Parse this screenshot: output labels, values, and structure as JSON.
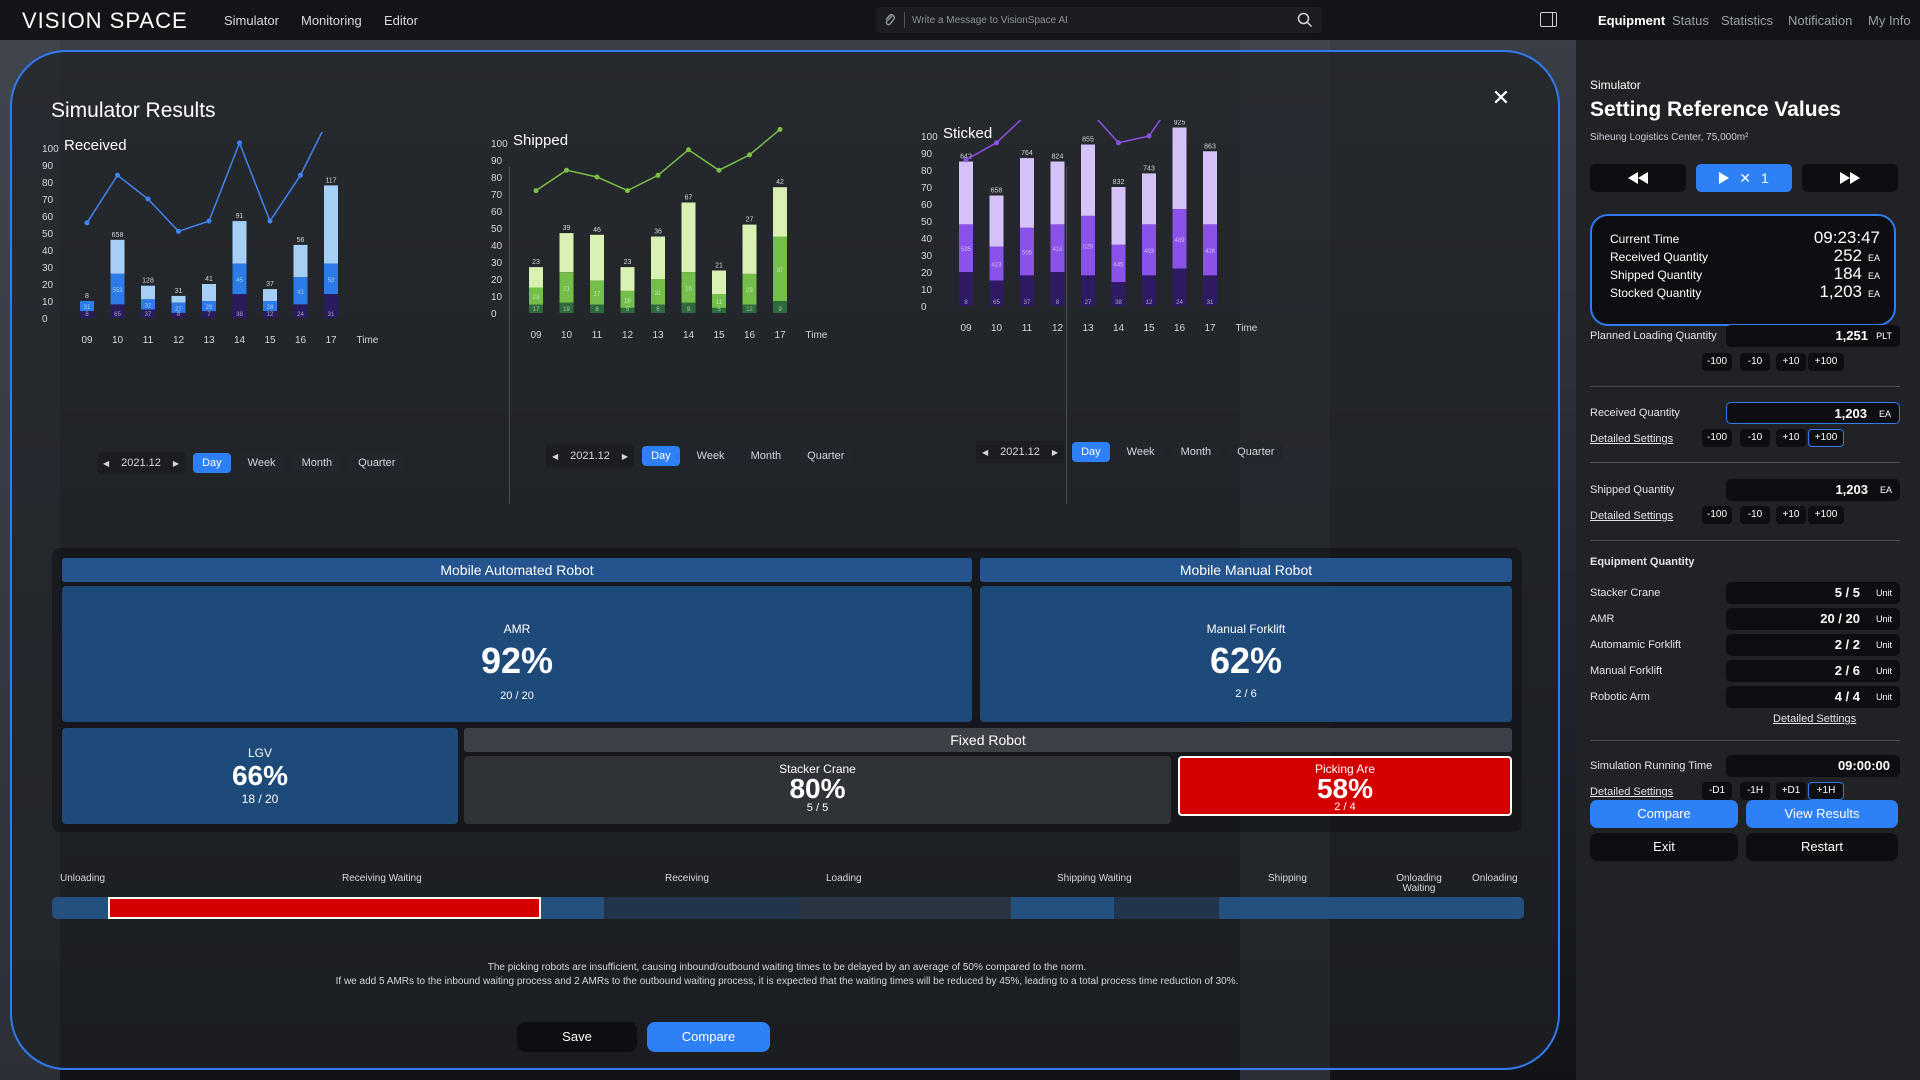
{
  "header": {
    "logo": "VISION SPACE",
    "nav": [
      "Simulator",
      "Monitoring",
      "Editor"
    ],
    "ai_placeholder": "Write a Message to VisionSpace AI",
    "right_tabs": [
      "Equipment",
      "Status",
      "Statistics",
      "Notification",
      "My Info"
    ]
  },
  "modal": {
    "title": "Simulator Results"
  },
  "chart_data": [
    {
      "type": "bar",
      "title": "Received",
      "xlabel": "Time",
      "categories": [
        "09",
        "10",
        "11",
        "12",
        "13",
        "14",
        "15",
        "16",
        "17"
      ],
      "yticks": [
        0,
        10,
        20,
        30,
        40,
        50,
        60,
        70,
        80,
        90,
        100
      ],
      "bar_labels": [
        8,
        658,
        128,
        31,
        41,
        91,
        37,
        56,
        117
      ],
      "inner_labels": [
        31,
        553,
        32,
        27,
        29,
        45,
        28,
        41,
        53
      ],
      "low_labels": [
        8,
        65,
        37,
        8,
        7,
        38,
        12,
        24,
        31
      ],
      "bar_total": [
        10,
        46,
        19,
        13,
        20,
        57,
        17,
        43,
        78
      ],
      "segments": {
        "bottom": [
          4,
          8,
          5,
          3,
          4,
          14,
          4,
          8,
          14
        ],
        "middle": [
          6,
          18,
          6,
          6,
          6,
          18,
          6,
          16,
          18
        ]
      },
      "line": [
        56,
        84,
        70,
        51,
        57,
        103,
        57,
        84,
        120
      ],
      "colors": {
        "bar_top": "#a5cff5",
        "bar_mid": "#2d7be9",
        "bar_bottom": "#2a1a5e",
        "line": "#3f86f2"
      },
      "controls": {
        "date": "2021.12",
        "periods": [
          "Day",
          "Week",
          "Month",
          "Quarter"
        ],
        "active": "Day"
      }
    },
    {
      "type": "bar",
      "title": "Shipped",
      "xlabel": "Time",
      "categories": [
        "09",
        "10",
        "11",
        "12",
        "13",
        "14",
        "15",
        "16",
        "17"
      ],
      "yticks": [
        0,
        10,
        20,
        30,
        40,
        50,
        60,
        70,
        80,
        90,
        100
      ],
      "bar_labels": [
        23,
        39,
        46,
        23,
        36,
        67,
        21,
        27,
        42
      ],
      "inner_labels": [
        23,
        21,
        17,
        18,
        31,
        16,
        11,
        23,
        37
      ],
      "low_labels": [
        17,
        19,
        8,
        5,
        6,
        9,
        5,
        12,
        9
      ],
      "bar_total": [
        27,
        47,
        46,
        27,
        45,
        65,
        25,
        52,
        74
      ],
      "segments": {
        "bottom": [
          5,
          6,
          5,
          3,
          5,
          6,
          3,
          5,
          7
        ],
        "middle": [
          10,
          18,
          14,
          10,
          15,
          18,
          8,
          18,
          38
        ]
      },
      "line": [
        72,
        84,
        80,
        72,
        81,
        96,
        84,
        93,
        108
      ],
      "colors": {
        "bar_top": "#d9f1b3",
        "bar_mid": "#74bf4a",
        "bar_bottom": "#2e6a3c",
        "line": "#7bbf45"
      },
      "controls": {
        "date": "2021.12",
        "periods": [
          "Day",
          "Week",
          "Month",
          "Quarter"
        ],
        "active": "Day"
      }
    },
    {
      "type": "bar",
      "title": "Sticked",
      "xlabel": "Time",
      "categories": [
        "09",
        "10",
        "11",
        "12",
        "13",
        "14",
        "15",
        "16",
        "17"
      ],
      "yticks": [
        0,
        10,
        20,
        30,
        40,
        50,
        60,
        70,
        80,
        90,
        100
      ],
      "bar_labels": [
        642,
        658,
        764,
        824,
        855,
        832,
        743,
        925,
        863
      ],
      "inner_labels": [
        535,
        423,
        505,
        418,
        529,
        445,
        493,
        489,
        426
      ],
      "low_labels": [
        8,
        65,
        37,
        8,
        27,
        38,
        12,
        24,
        31
      ],
      "bar_total": [
        85,
        65,
        87,
        85,
        95,
        70,
        78,
        105,
        91
      ],
      "segments": {
        "bottom": [
          20,
          15,
          18,
          20,
          18,
          14,
          18,
          22,
          18
        ],
        "middle": [
          28,
          20,
          28,
          28,
          35,
          22,
          30,
          35,
          30
        ]
      },
      "line": [
        86,
        96,
        113,
        112,
        116,
        96,
        100,
        126,
        114
      ],
      "colors": {
        "bar_top": "#d4c2f8",
        "bar_mid": "#8a52e8",
        "bar_bottom": "#2e1a62",
        "line": "#8a52e8"
      },
      "controls": {
        "date": "2021.12",
        "periods": [
          "Day",
          "Week",
          "Month",
          "Quarter"
        ],
        "active": "Day"
      }
    }
  ],
  "robots": {
    "mar_header": "Mobile Automated Robot",
    "mmr_header": "Mobile Manual Robot",
    "fixed_header": "Fixed Robot",
    "amr": {
      "name": "AMR",
      "pct": "92%",
      "count": "20 / 20"
    },
    "forklift": {
      "name": "Manual Forklift",
      "pct": "62%",
      "count": "2 / 6"
    },
    "lgv": {
      "name": "LGV",
      "pct": "66%",
      "count": "18 / 20"
    },
    "stacker": {
      "name": "Stacker Crane",
      "pct": "80%",
      "count": "5 / 5"
    },
    "picking": {
      "name": "Picking Are",
      "pct": "58%",
      "count": "2 / 4"
    }
  },
  "process": {
    "labels": [
      "Unloading",
      "Receiving Waiting",
      "Receiving",
      "Loading",
      "Shipping Waiting",
      "Shipping",
      "Onloading Waiting",
      "Onloading"
    ],
    "colors": {
      "blue": "#24507e",
      "dark": "#22344b",
      "red": "#d40000"
    }
  },
  "message": {
    "line1": "The picking robots are insufficient, causing inbound/outbound waiting times to be delayed by an average of 50% compared to the norm.",
    "line2": "If we add 5 AMRs to the inbound waiting process and 2 AMRs to the outbound waiting process, it is expected that the waiting times will be reduced by 45%, leading to a total process time reduction of 30%."
  },
  "modal_buttons": {
    "save": "Save",
    "compare": "Compare"
  },
  "rpanel": {
    "sub": "Simulator",
    "title": "Setting Reference Values",
    "location": "Siheung Logistics Center, 75,000m²",
    "play_speed": "1",
    "time": [
      {
        "label": "Current Time",
        "value": "09:23:47",
        "unit": ""
      },
      {
        "label": "Received Quantity",
        "value": "252",
        "unit": "EA"
      },
      {
        "label": "Shipped Quantity",
        "value": "184",
        "unit": "EA"
      },
      {
        "label": "Stocked Quantity",
        "value": "1,203",
        "unit": "EA"
      }
    ],
    "planned": {
      "label": "Planned Loading Quantity",
      "value": "1,251",
      "unit": "PLT"
    },
    "received": {
      "label": "Received Quantity",
      "value": "1,203",
      "unit": "EA"
    },
    "shipped": {
      "label": "Shipped Quantity",
      "value": "1,203",
      "unit": "EA"
    },
    "detailed": "Detailed Settings",
    "steps": [
      "-100",
      "-10",
      "+10",
      "+100"
    ],
    "equip_title": "Equipment Quantity",
    "equip": [
      {
        "label": "Stacker Crane",
        "value": "5 / 5",
        "unit": "Unit"
      },
      {
        "label": "AMR",
        "value": "20 / 20",
        "unit": "Unit"
      },
      {
        "label": "Automamic Forklift",
        "value": "2 / 2",
        "unit": "Unit"
      },
      {
        "label": "Manual Forklift",
        "value": "2 / 6",
        "unit": "Unit"
      },
      {
        "label": "Robotic Arm",
        "value": "4 / 4",
        "unit": "Unit"
      }
    ],
    "runtime": {
      "label": "Simulation Running Time",
      "value": "09:00:00"
    },
    "time_steps": [
      "-D1",
      "-1H",
      "+D1",
      "+1H"
    ],
    "buttons": {
      "compare": "Compare",
      "view": "View Results",
      "exit": "Exit",
      "restart": "Restart"
    }
  }
}
